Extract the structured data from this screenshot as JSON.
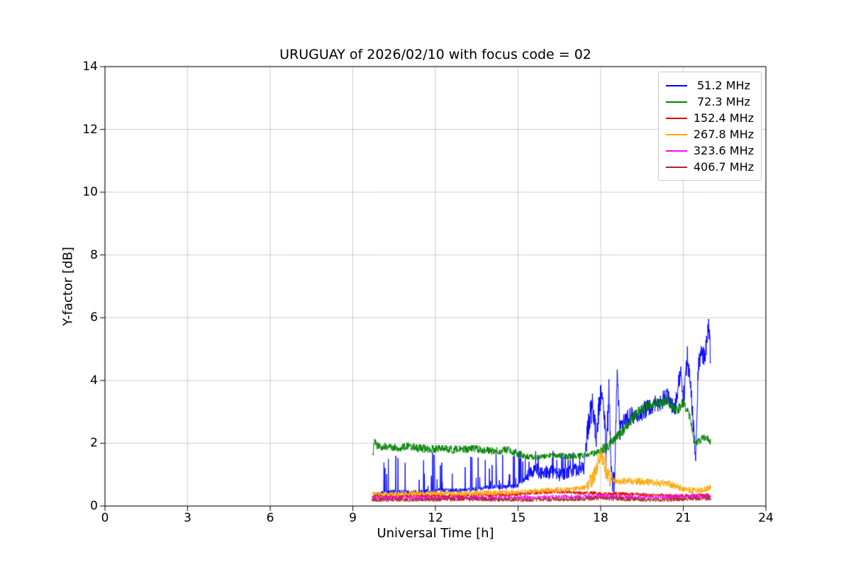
{
  "chart_data": {
    "type": "line",
    "title": "URUGUAY of 2026/02/10 with focus code = 02",
    "xlabel": "Universal Time [h]",
    "ylabel": "Y-factor [dB]",
    "xlim": [
      0,
      24
    ],
    "ylim": [
      0,
      14
    ],
    "xticks": [
      0,
      3,
      6,
      9,
      12,
      15,
      18,
      21,
      24
    ],
    "yticks": [
      0,
      2,
      4,
      6,
      8,
      10,
      12,
      14
    ],
    "grid": true,
    "legend_position": "upper right",
    "series": [
      {
        "name": "51.2 MHz",
        "label": " 51.2 MHz",
        "color": "#0000ff",
        "noise": [
          [
            9.7,
            15.3,
            0.07
          ],
          [
            15.3,
            17.45,
            0.22
          ],
          [
            17.45,
            18.55,
            0.45
          ],
          [
            18.55,
            21.0,
            0.3
          ],
          [
            21.0,
            22.0,
            0.35
          ]
        ],
        "spikes": [
          [
            10.1,
            11.4,
            0.06,
            1.5
          ],
          [
            11.4,
            15.3,
            0.12,
            1.2
          ],
          [
            15.3,
            17.45,
            0.08,
            0.7
          ]
        ],
        "keypoints": [
          [
            9.75,
            0.35
          ],
          [
            10.0,
            0.4
          ],
          [
            10.5,
            0.45
          ],
          [
            11.0,
            0.45
          ],
          [
            11.5,
            0.45
          ],
          [
            12.0,
            0.5
          ],
          [
            12.5,
            0.5
          ],
          [
            13.0,
            0.5
          ],
          [
            13.5,
            0.55
          ],
          [
            14.0,
            0.6
          ],
          [
            14.5,
            0.6
          ],
          [
            15.0,
            0.65
          ],
          [
            15.3,
            0.9
          ],
          [
            15.6,
            1.2
          ],
          [
            15.9,
            1.0
          ],
          [
            16.2,
            1.1
          ],
          [
            16.5,
            1.0
          ],
          [
            16.8,
            1.1
          ],
          [
            17.1,
            1.15
          ],
          [
            17.4,
            1.2
          ],
          [
            17.55,
            2.6
          ],
          [
            17.7,
            3.2
          ],
          [
            17.85,
            2.2
          ],
          [
            17.95,
            3.4
          ],
          [
            18.1,
            3.5
          ],
          [
            18.2,
            1.6
          ],
          [
            18.3,
            3.6
          ],
          [
            18.4,
            0.9
          ],
          [
            18.5,
            0.7
          ],
          [
            18.6,
            4.2
          ],
          [
            18.7,
            2.4
          ],
          [
            18.85,
            2.7
          ],
          [
            19.0,
            2.8
          ],
          [
            19.2,
            2.9
          ],
          [
            19.5,
            3.0
          ],
          [
            19.8,
            3.2
          ],
          [
            20.1,
            3.3
          ],
          [
            20.4,
            3.5
          ],
          [
            20.7,
            3.1
          ],
          [
            20.9,
            4.3
          ],
          [
            21.0,
            3.3
          ],
          [
            21.15,
            4.8
          ],
          [
            21.3,
            3.4
          ],
          [
            21.45,
            1.4
          ],
          [
            21.55,
            4.6
          ],
          [
            21.65,
            4.9
          ],
          [
            21.75,
            4.7
          ],
          [
            21.85,
            5.2
          ],
          [
            21.92,
            5.8
          ],
          [
            22.0,
            4.6
          ]
        ]
      },
      {
        "name": "72.3 MHz",
        "label": " 72.3 MHz",
        "color": "#008000",
        "noise": [
          [
            9.7,
            15.0,
            0.13
          ],
          [
            15.0,
            18.0,
            0.1
          ],
          [
            18.0,
            21.3,
            0.17
          ],
          [
            21.3,
            22.0,
            0.12
          ]
        ],
        "spikes": [],
        "keypoints": [
          [
            9.72,
            1.55
          ],
          [
            9.78,
            2.05
          ],
          [
            9.9,
            1.9
          ],
          [
            10.2,
            1.9
          ],
          [
            10.6,
            1.85
          ],
          [
            11.0,
            1.9
          ],
          [
            11.4,
            1.85
          ],
          [
            11.8,
            1.8
          ],
          [
            12.2,
            1.85
          ],
          [
            12.6,
            1.8
          ],
          [
            13.0,
            1.8
          ],
          [
            13.4,
            1.82
          ],
          [
            13.8,
            1.78
          ],
          [
            14.2,
            1.75
          ],
          [
            14.6,
            1.8
          ],
          [
            14.9,
            1.7
          ],
          [
            15.2,
            1.6
          ],
          [
            15.6,
            1.55
          ],
          [
            16.0,
            1.6
          ],
          [
            16.4,
            1.62
          ],
          [
            16.8,
            1.58
          ],
          [
            17.2,
            1.6
          ],
          [
            17.6,
            1.65
          ],
          [
            18.0,
            1.75
          ],
          [
            18.3,
            1.95
          ],
          [
            18.6,
            2.2
          ],
          [
            18.9,
            2.5
          ],
          [
            19.2,
            2.85
          ],
          [
            19.5,
            3.1
          ],
          [
            19.8,
            3.25
          ],
          [
            20.1,
            3.3
          ],
          [
            20.4,
            3.35
          ],
          [
            20.6,
            3.2
          ],
          [
            20.8,
            3.05
          ],
          [
            21.0,
            3.3
          ],
          [
            21.1,
            3.1
          ],
          [
            21.25,
            2.8
          ],
          [
            21.4,
            2.0
          ],
          [
            21.55,
            2.05
          ],
          [
            21.7,
            2.15
          ],
          [
            21.85,
            2.2
          ],
          [
            22.0,
            2.05
          ]
        ]
      },
      {
        "name": "152.4 MHz",
        "label": "152.4 MHz",
        "color": "#dd0000",
        "noise": [
          [
            9.7,
            22.0,
            0.06
          ]
        ],
        "spikes": [],
        "keypoints": [
          [
            9.7,
            0.3
          ],
          [
            11.0,
            0.32
          ],
          [
            13.0,
            0.33
          ],
          [
            14.5,
            0.35
          ],
          [
            15.5,
            0.42
          ],
          [
            16.5,
            0.45
          ],
          [
            17.5,
            0.42
          ],
          [
            18.0,
            0.4
          ],
          [
            19.0,
            0.38
          ],
          [
            20.0,
            0.35
          ],
          [
            21.0,
            0.33
          ],
          [
            22.0,
            0.35
          ]
        ]
      },
      {
        "name": "267.8 MHz",
        "label": "267.8 MHz",
        "color": "#ffa500",
        "noise": [
          [
            9.7,
            17.5,
            0.08
          ],
          [
            17.5,
            18.4,
            0.28
          ],
          [
            18.4,
            21.0,
            0.12
          ],
          [
            21.0,
            22.0,
            0.1
          ]
        ],
        "spikes": [
          [
            17.8,
            18.25,
            0.06,
            0.6
          ]
        ],
        "keypoints": [
          [
            9.7,
            0.38
          ],
          [
            11.0,
            0.4
          ],
          [
            12.0,
            0.42
          ],
          [
            13.0,
            0.4
          ],
          [
            14.0,
            0.42
          ],
          [
            15.0,
            0.45
          ],
          [
            16.0,
            0.5
          ],
          [
            17.0,
            0.55
          ],
          [
            17.5,
            0.6
          ],
          [
            17.75,
            0.9
          ],
          [
            17.9,
            1.4
          ],
          [
            18.0,
            1.7
          ],
          [
            18.1,
            1.5
          ],
          [
            18.2,
            1.0
          ],
          [
            18.35,
            0.85
          ],
          [
            18.6,
            0.8
          ],
          [
            19.0,
            0.8
          ],
          [
            19.5,
            0.78
          ],
          [
            20.0,
            0.75
          ],
          [
            20.5,
            0.7
          ],
          [
            20.8,
            0.6
          ],
          [
            21.0,
            0.55
          ],
          [
            21.3,
            0.5
          ],
          [
            21.6,
            0.5
          ],
          [
            21.9,
            0.55
          ],
          [
            22.0,
            0.6
          ]
        ]
      },
      {
        "name": "323.6 MHz",
        "label": "323.6 MHz",
        "color": "#ff00ff",
        "noise": [
          [
            9.7,
            22.0,
            0.07
          ]
        ],
        "spikes": [],
        "keypoints": [
          [
            9.7,
            0.25
          ],
          [
            12.0,
            0.25
          ],
          [
            14.0,
            0.25
          ],
          [
            16.0,
            0.28
          ],
          [
            18.0,
            0.3
          ],
          [
            20.0,
            0.28
          ],
          [
            21.0,
            0.3
          ],
          [
            22.0,
            0.3
          ]
        ]
      },
      {
        "name": "406.7 MHz",
        "label": "406.7 MHz",
        "color": "#a52a2a",
        "noise": [
          [
            9.7,
            22.0,
            0.07
          ]
        ],
        "spikes": [],
        "keypoints": [
          [
            9.7,
            0.2
          ],
          [
            11.0,
            0.2
          ],
          [
            13.0,
            0.22
          ],
          [
            15.0,
            0.2
          ],
          [
            17.0,
            0.22
          ],
          [
            18.0,
            0.25
          ],
          [
            19.0,
            0.22
          ],
          [
            20.0,
            0.2
          ],
          [
            21.0,
            0.22
          ],
          [
            22.0,
            0.25
          ]
        ]
      }
    ]
  }
}
